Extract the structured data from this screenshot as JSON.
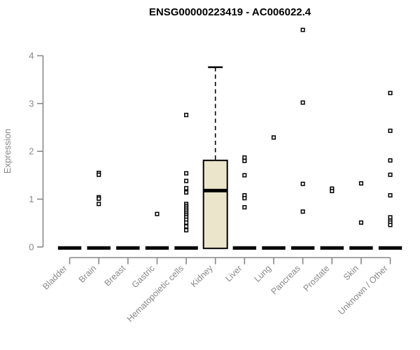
{
  "chart_data": {
    "type": "box",
    "title": "ENSG00000223419 - AC006022.4",
    "ylabel": "Expression",
    "xlabel": "",
    "ylim": [
      0,
      4
    ],
    "yticks": [
      0,
      1,
      2,
      3,
      4
    ],
    "grid": false,
    "legend": "none",
    "categories": [
      "Bladder",
      "Brain",
      "Breast",
      "Gastric",
      "Hematopoietic cells",
      "Kidney",
      "Liver",
      "Lung",
      "Pancreas",
      "Prostate",
      "Skin",
      "Unknown / Other"
    ],
    "boxes": [
      {
        "category": "Bladder",
        "q1": 0,
        "median": 0,
        "q3": 0,
        "whisker_low": 0,
        "whisker_high": 0,
        "outliers": []
      },
      {
        "category": "Brain",
        "q1": 0,
        "median": 0,
        "q3": 0,
        "whisker_low": 0,
        "whisker_high": 0,
        "outliers": [
          1.55,
          1.51,
          1.04,
          1.01,
          0.9
        ]
      },
      {
        "category": "Breast",
        "q1": 0,
        "median": 0,
        "q3": 0,
        "whisker_low": 0,
        "whisker_high": 0,
        "outliers": []
      },
      {
        "category": "Gastric",
        "q1": 0,
        "median": 0,
        "q3": 0,
        "whisker_low": 0,
        "whisker_high": 0,
        "outliers": [
          0.69
        ]
      },
      {
        "category": "Hematopoietic cells",
        "q1": 0,
        "median": 0,
        "q3": 0,
        "whisker_low": 0,
        "whisker_high": 0,
        "outliers": [
          2.76,
          1.54,
          1.38,
          1.23,
          1.14,
          0.9,
          0.86,
          0.82,
          0.78,
          0.74,
          0.7,
          0.66,
          0.62,
          0.57,
          0.51,
          0.43,
          0.35
        ]
      },
      {
        "category": "Kidney",
        "q1": 0,
        "median": 1.18,
        "q3": 1.81,
        "whisker_low": 0,
        "whisker_high": 3.76,
        "outliers": []
      },
      {
        "category": "Liver",
        "q1": 0,
        "median": 0,
        "q3": 0,
        "whisker_low": 0,
        "whisker_high": 0,
        "outliers": [
          1.87,
          1.8,
          1.5,
          1.08,
          1.02,
          0.83
        ]
      },
      {
        "category": "Lung",
        "q1": 0,
        "median": 0,
        "q3": 0,
        "whisker_low": 0,
        "whisker_high": 0,
        "outliers": [
          2.29
        ]
      },
      {
        "category": "Pancreas",
        "q1": 0,
        "median": 0,
        "q3": 0,
        "whisker_low": 0,
        "whisker_high": 0,
        "outliers": [
          4.54,
          3.02,
          1.32,
          0.74
        ]
      },
      {
        "category": "Prostate",
        "q1": 0,
        "median": 0,
        "q3": 0,
        "whisker_low": 0,
        "whisker_high": 0,
        "outliers": [
          1.22,
          1.17
        ]
      },
      {
        "category": "Skin",
        "q1": 0,
        "median": 0,
        "q3": 0,
        "whisker_low": 0,
        "whisker_high": 0,
        "outliers": [
          1.33,
          0.51
        ]
      },
      {
        "category": "Unknown / Other",
        "q1": 0,
        "median": 0,
        "q3": 0,
        "whisker_low": 0,
        "whisker_high": 0,
        "outliers": [
          3.22,
          2.43,
          1.81,
          1.51,
          1.08,
          0.62,
          0.55,
          0.51,
          0.46
        ]
      }
    ],
    "colors": {
      "box_fill": "#EBE6CB",
      "box_stroke": "#000000",
      "median": "#000000",
      "whisker": "#000000",
      "outlier_stroke": "#000000",
      "axis": "#888888",
      "tick_label": "#888888",
      "title": "#000000",
      "background": "#FFFFFF"
    }
  }
}
